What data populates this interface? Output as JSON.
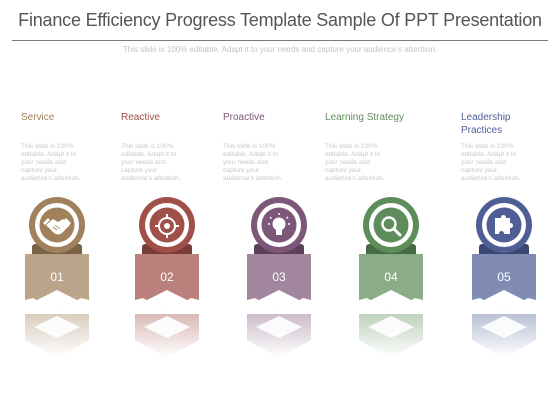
{
  "title": "Finance Efficiency Progress Template Sample Of PPT Presentation",
  "subtitle": "This slide is 100% editable. Adapt it to your needs and capture your audience’s attention.",
  "items": [
    {
      "label": "Service",
      "description": "This slide is 100% editable. Adapt it to your needs and capture your audience’s attention.",
      "number": "01",
      "color": "#a0815b",
      "icon": "handshake-icon"
    },
    {
      "label": "Reactive",
      "description": "This slide is 100% editable. Adapt it to your needs and capture your audience’s attention.",
      "number": "02",
      "color": "#9f5049",
      "icon": "target-icon"
    },
    {
      "label": "Proactive",
      "description": "This slide is 100% editable. Adapt it to your needs and capture your audience’s attention.",
      "number": "03",
      "color": "#7d5777",
      "icon": "lightbulb-icon"
    },
    {
      "label": "Learning Strategy",
      "description": "This slide is 100% editable. Adapt it to your needs and capture your audience’s attention.",
      "number": "04",
      "color": "#5d8d5a",
      "icon": "magnifier-icon"
    },
    {
      "label": "Leadership Practices",
      "description": "This slide is 100% editable. Adapt it to your needs and capture your audience’s attention.",
      "number": "05",
      "color": "#4f5f96",
      "icon": "puzzle-icon"
    }
  ]
}
